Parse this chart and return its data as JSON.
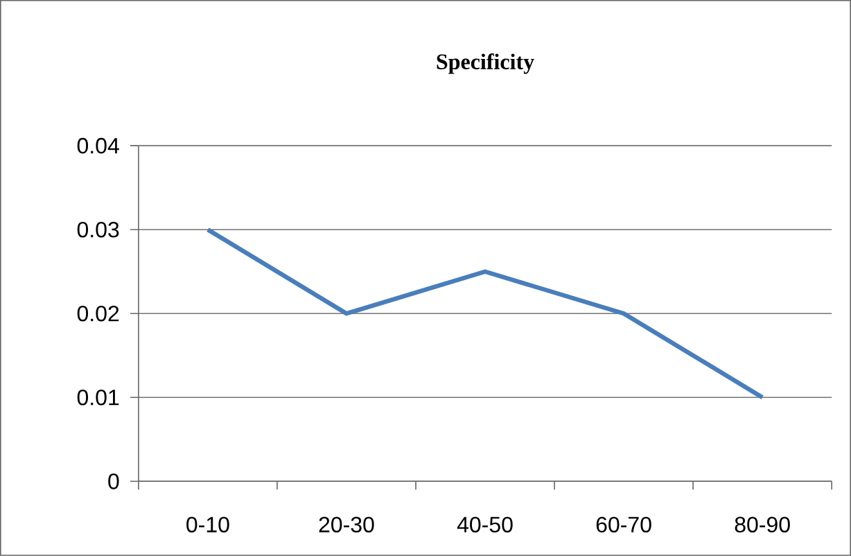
{
  "chart_data": {
    "type": "line",
    "title": "Specificity",
    "categories": [
      "0-10",
      "20-30",
      "40-50",
      "60-70",
      "80-90"
    ],
    "series": [
      {
        "color": "#4a7ebb",
        "values": [
          0.03,
          0.02,
          0.025,
          0.02,
          0.01
        ]
      }
    ],
    "ylim": [
      0,
      0.04
    ],
    "yticks": [
      0,
      0.01,
      0.02,
      0.03,
      0.04
    ],
    "grid": "y",
    "marker": "none",
    "line_style": "solid"
  }
}
